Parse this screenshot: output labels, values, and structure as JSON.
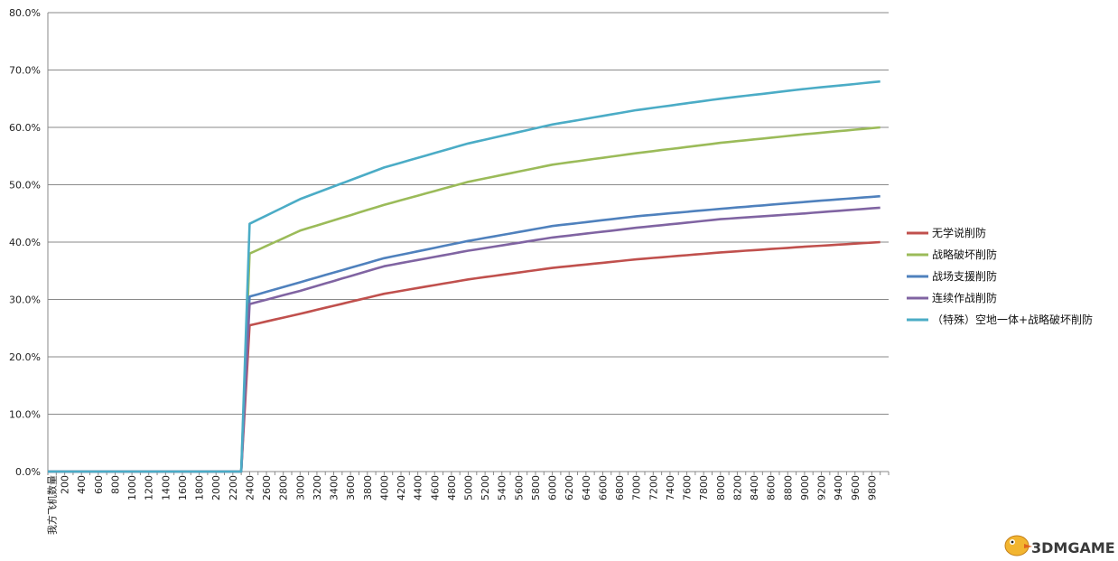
{
  "chart_data": {
    "type": "line",
    "title": "",
    "xlabel": "",
    "ylabel": "",
    "x_first_label": "我方飞机数量",
    "x_tick_labels": [
      "200",
      "400",
      "600",
      "800",
      "1000",
      "1200",
      "1400",
      "1600",
      "1800",
      "2000",
      "2200",
      "2400",
      "2600",
      "2800",
      "3000",
      "3200",
      "3400",
      "3600",
      "3800",
      "4000",
      "4200",
      "4400",
      "4600",
      "4800",
      "5000",
      "5200",
      "5400",
      "5600",
      "5800",
      "6000",
      "6200",
      "6400",
      "6600",
      "6800",
      "7000",
      "7200",
      "7400",
      "7600",
      "7800",
      "8000",
      "8200",
      "8400",
      "8600",
      "8800",
      "9000",
      "9200",
      "9400",
      "9600",
      "9800"
    ],
    "xlim": [
      0,
      10000
    ],
    "ylim": [
      0,
      0.8
    ],
    "y_ticks": [
      "0.0%",
      "10.0%",
      "20.0%",
      "30.0%",
      "40.0%",
      "50.0%",
      "60.0%",
      "70.0%",
      "80.0%"
    ],
    "grid": true,
    "legend_position": "right",
    "jump_start": 2300,
    "jump_end": 2400,
    "x_end": 9900,
    "series": [
      {
        "name": "无学说削防",
        "color": "#C0504D",
        "points": [
          [
            2400,
            0.255
          ],
          [
            3000,
            0.275
          ],
          [
            4000,
            0.31
          ],
          [
            5000,
            0.335
          ],
          [
            6000,
            0.355
          ],
          [
            7000,
            0.37
          ],
          [
            8000,
            0.382
          ],
          [
            9000,
            0.392
          ],
          [
            9900,
            0.4
          ]
        ]
      },
      {
        "name": "战略破坏削防",
        "color": "#9BBB59",
        "points": [
          [
            2400,
            0.38
          ],
          [
            3000,
            0.42
          ],
          [
            4000,
            0.465
          ],
          [
            5000,
            0.505
          ],
          [
            6000,
            0.535
          ],
          [
            7000,
            0.555
          ],
          [
            8000,
            0.573
          ],
          [
            9000,
            0.588
          ],
          [
            9900,
            0.6
          ]
        ]
      },
      {
        "name": "战场支援削防",
        "color": "#4F81BD",
        "points": [
          [
            2400,
            0.305
          ],
          [
            3000,
            0.33
          ],
          [
            4000,
            0.372
          ],
          [
            5000,
            0.402
          ],
          [
            6000,
            0.428
          ],
          [
            7000,
            0.445
          ],
          [
            8000,
            0.458
          ],
          [
            9000,
            0.47
          ],
          [
            9900,
            0.48
          ]
        ]
      },
      {
        "name": "连续作战削防",
        "color": "#8064A2",
        "points": [
          [
            2400,
            0.292
          ],
          [
            3000,
            0.315
          ],
          [
            4000,
            0.358
          ],
          [
            5000,
            0.385
          ],
          [
            6000,
            0.408
          ],
          [
            7000,
            0.425
          ],
          [
            8000,
            0.44
          ],
          [
            9000,
            0.45
          ],
          [
            9900,
            0.46
          ]
        ]
      },
      {
        "name": "（特殊）空地一体+战略破坏削防",
        "color": "#4BACC6",
        "points": [
          [
            2400,
            0.432
          ],
          [
            3000,
            0.475
          ],
          [
            4000,
            0.53
          ],
          [
            5000,
            0.572
          ],
          [
            6000,
            0.605
          ],
          [
            7000,
            0.63
          ],
          [
            8000,
            0.65
          ],
          [
            9000,
            0.667
          ],
          [
            9900,
            0.68
          ]
        ]
      }
    ]
  },
  "watermark": {
    "text": "3DMGAME",
    "icon": "bird-mascot-icon",
    "color": "#E8A020"
  }
}
